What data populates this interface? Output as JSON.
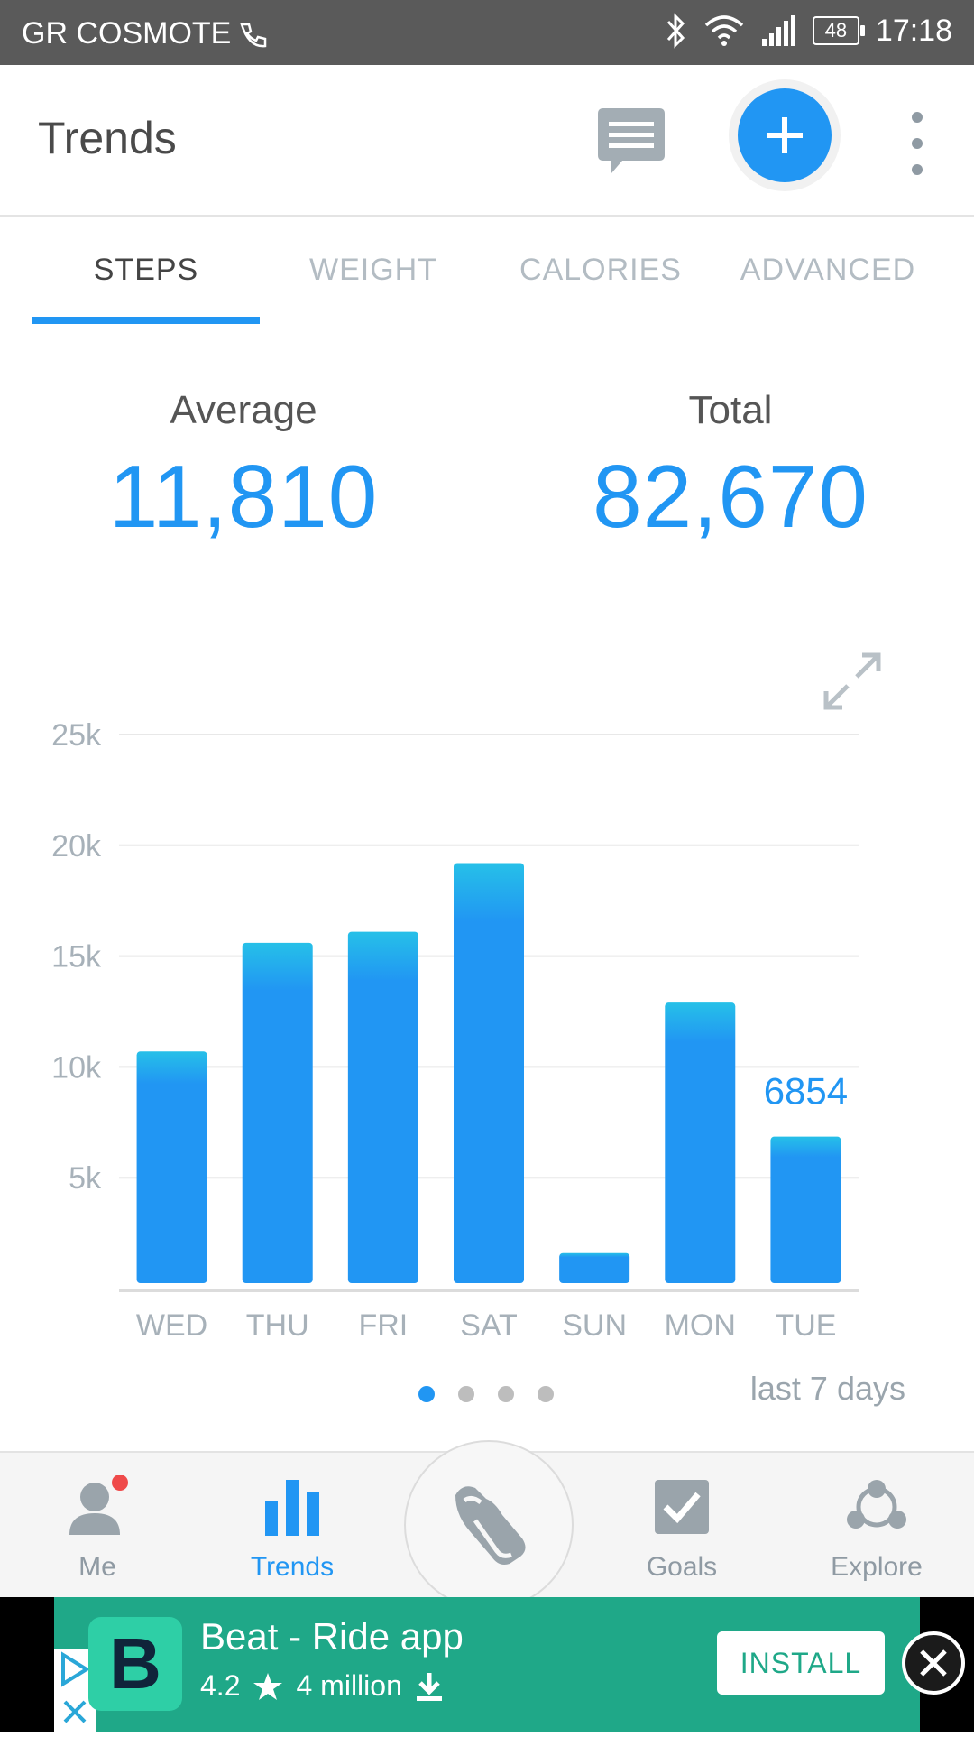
{
  "status_bar": {
    "carrier": "GR COSMOTE",
    "battery": "48",
    "time": "17:18"
  },
  "app_bar": {
    "title": "Trends"
  },
  "tabs": [
    {
      "label": "STEPS",
      "active": true
    },
    {
      "label": "WEIGHT",
      "active": false
    },
    {
      "label": "CALORIES",
      "active": false
    },
    {
      "label": "ADVANCED",
      "active": false
    }
  ],
  "stats": {
    "average_label": "Average",
    "average_value": "11,810",
    "total_label": "Total",
    "total_value": "82,670"
  },
  "chart_data": {
    "type": "bar",
    "categories": [
      "WED",
      "THU",
      "FRI",
      "SAT",
      "SUN",
      "MON",
      "TUE"
    ],
    "values": [
      10700,
      15600,
      16100,
      19200,
      1600,
      12900,
      6854
    ],
    "yticks": [
      "5k",
      "10k",
      "15k",
      "20k",
      "25k"
    ],
    "ylim": [
      0,
      25000
    ],
    "highlight_label": "6854",
    "grid": true,
    "colors": {
      "bar": "#2196f3",
      "bar_top": "#26c0e8",
      "grid": "#e8e8e8",
      "tick": "#a7b1b9"
    }
  },
  "pager": {
    "count": 4,
    "active": 0
  },
  "range_label": "last 7 days",
  "bottom_nav": {
    "me": "Me",
    "trends": "Trends",
    "goals": "Goals",
    "explore": "Explore"
  },
  "ad": {
    "title": "Beat - Ride app",
    "rating": "4.2",
    "downloads": "4 million",
    "install_label": "INSTALL",
    "color": "#1fa888"
  }
}
